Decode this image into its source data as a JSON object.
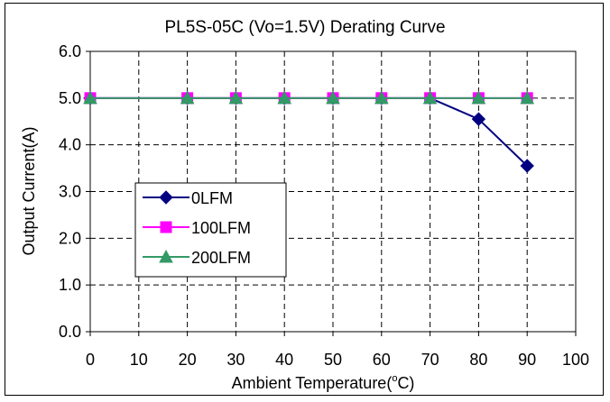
{
  "chart_data": {
    "type": "line",
    "title": "PL5S-05C (Vo=1.5V) Derating Curve",
    "xlabel": "Ambient Temperature(",
    "xlabel_degree": "o",
    "xlabel_unit": "C)",
    "ylabel": "Output Current(A)",
    "xlim": [
      0,
      100
    ],
    "ylim": [
      0,
      6
    ],
    "x_ticks": [
      "0",
      "10",
      "20",
      "30",
      "40",
      "50",
      "60",
      "70",
      "80",
      "90",
      "100"
    ],
    "y_ticks": [
      "0.0",
      "1.0",
      "2.0",
      "3.0",
      "4.0",
      "5.0",
      "6.0"
    ],
    "grid": true,
    "legend_position": "lower-left",
    "series": [
      {
        "name": "0LFM",
        "color": "#000080",
        "marker": "diamond",
        "x": [
          0,
          20,
          30,
          40,
          50,
          60,
          70,
          80,
          90
        ],
        "y": [
          5.0,
          5.0,
          5.0,
          5.0,
          5.0,
          5.0,
          5.0,
          4.55,
          3.55
        ]
      },
      {
        "name": "100LFM",
        "color": "#ff00ff",
        "marker": "square",
        "x": [
          0,
          20,
          30,
          40,
          50,
          60,
          70,
          80,
          90
        ],
        "y": [
          5.0,
          5.0,
          5.0,
          5.0,
          5.0,
          5.0,
          5.0,
          5.0,
          5.0
        ]
      },
      {
        "name": "200LFM",
        "color": "#339966",
        "marker": "triangle",
        "x": [
          0,
          20,
          30,
          40,
          50,
          60,
          70,
          80,
          90
        ],
        "y": [
          5.0,
          5.0,
          5.0,
          5.0,
          5.0,
          5.0,
          5.0,
          5.0,
          5.0
        ]
      }
    ]
  }
}
